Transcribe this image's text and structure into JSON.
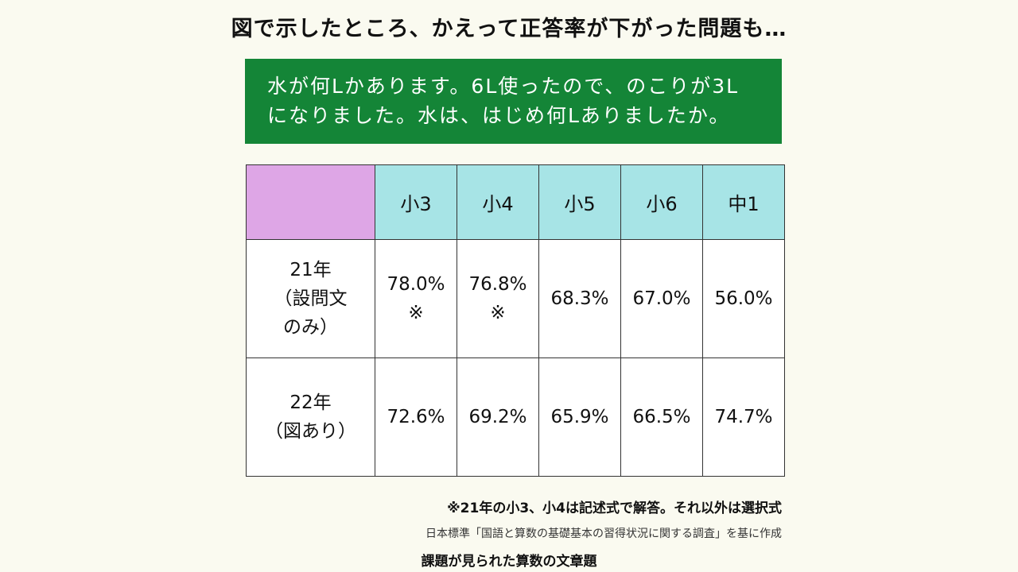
{
  "title": "図で示したところ、かえって正答率が下がった問題も…",
  "question": {
    "line1": "水が何Lかあります。6L使ったので、のこりが3L",
    "line2": "になりました。水は、はじめ何Lありましたか。"
  },
  "table": {
    "headers": [
      "小3",
      "小4",
      "小5",
      "小6",
      "中1"
    ],
    "rows": [
      {
        "label_lines": [
          "21年",
          "（設問文",
          "のみ）"
        ],
        "cells": [
          {
            "value": "78.0%",
            "mark": "※"
          },
          {
            "value": "76.8%",
            "mark": "※"
          },
          {
            "value": "68.3%",
            "mark": ""
          },
          {
            "value": "67.0%",
            "mark": ""
          },
          {
            "value": "56.0%",
            "mark": ""
          }
        ]
      },
      {
        "label_lines": [
          "22年",
          "（図あり）"
        ],
        "cells": [
          {
            "value": "72.6%",
            "mark": ""
          },
          {
            "value": "69.2%",
            "mark": ""
          },
          {
            "value": "65.9%",
            "mark": ""
          },
          {
            "value": "66.5%",
            "mark": ""
          },
          {
            "value": "74.7%",
            "mark": ""
          }
        ]
      }
    ]
  },
  "note": "※21年の小3、小4は記述式で解答。それ以外は選択式",
  "source": "日本標準「国語と算数の基礎基本の習得状況に関する調査」を基に作成",
  "caption": "課題が見られた算数の文章題",
  "colors": {
    "background": "#fafaf0",
    "question_bg": "#148537",
    "header_bg": "#a7e4e6",
    "corner_bg": "#dea6e6"
  }
}
